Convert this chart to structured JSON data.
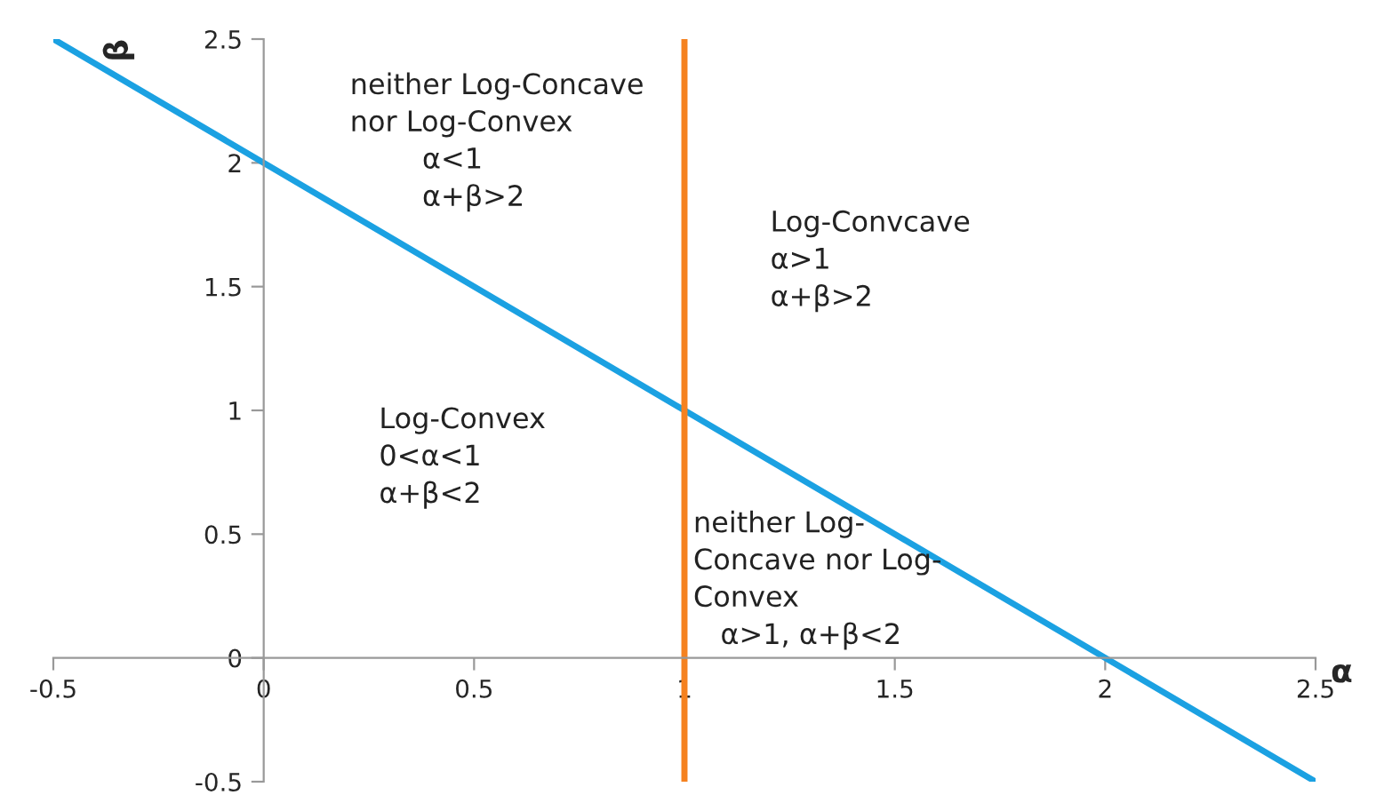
{
  "chart_data": {
    "type": "line",
    "xlabel": "α",
    "ylabel": "β",
    "series": [
      {
        "color": "#1ba1e2",
        "x": [
          -0.5,
          2.5
        ],
        "values": [
          2.5,
          -0.5
        ]
      },
      {
        "color": "#f58220",
        "x": [
          1,
          1
        ],
        "values": [
          -0.5,
          2.5
        ]
      }
    ],
    "xlim": [
      -0.5,
      2.5
    ],
    "ylim": [
      -0.5,
      2.5
    ],
    "xticks": [
      -0.5,
      0,
      0.5,
      1,
      1.5,
      2,
      2.5
    ],
    "yticks": [
      -0.5,
      0,
      0.5,
      1,
      1.5,
      2,
      2.5
    ],
    "grid": false,
    "legend": false,
    "annotations": [
      "neither Log-Concave\nnor Log-Convex\n        α<1\n        α+β>2",
      "Log-Convcave\nα>1\nα+β>2",
      "Log-Convex\n0<α<1\nα+β<2",
      "neither Log-\nConcave nor Log-\nConvex\n   α>1, α+β<2"
    ]
  }
}
